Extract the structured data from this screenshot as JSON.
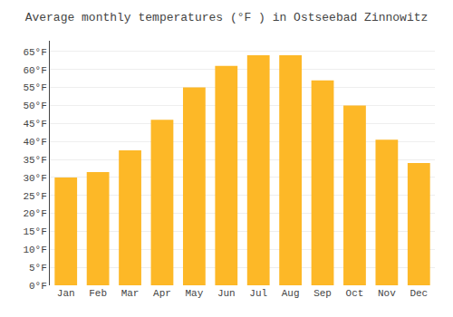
{
  "chart_data": {
    "type": "bar",
    "title": "Average monthly temperatures (°F ) in Ostseebad Zinnowitz",
    "categories": [
      "Jan",
      "Feb",
      "Mar",
      "Apr",
      "May",
      "Jun",
      "Jul",
      "Aug",
      "Sep",
      "Oct",
      "Nov",
      "Dec"
    ],
    "values": [
      30,
      31.5,
      37.5,
      46,
      55,
      61,
      64,
      64,
      57,
      50,
      40.5,
      34
    ],
    "color": "#FDB827",
    "ylim": [
      0,
      68
    ],
    "yticks": [
      {
        "value": 0,
        "label": "0°F"
      },
      {
        "value": 5,
        "label": "5°F"
      },
      {
        "value": 10,
        "label": "10°F"
      },
      {
        "value": 15,
        "label": "15°F"
      },
      {
        "value": 20,
        "label": "20°F"
      },
      {
        "value": 25,
        "label": "25°F"
      },
      {
        "value": 30,
        "label": "30°F"
      },
      {
        "value": 35,
        "label": "35°F"
      },
      {
        "value": 40,
        "label": "40°F"
      },
      {
        "value": 45,
        "label": "45°F"
      },
      {
        "value": 50,
        "label": "50°F"
      },
      {
        "value": 55,
        "label": "55°F"
      },
      {
        "value": 60,
        "label": "60°F"
      },
      {
        "value": 65,
        "label": "65°F"
      }
    ],
    "grid": true
  }
}
